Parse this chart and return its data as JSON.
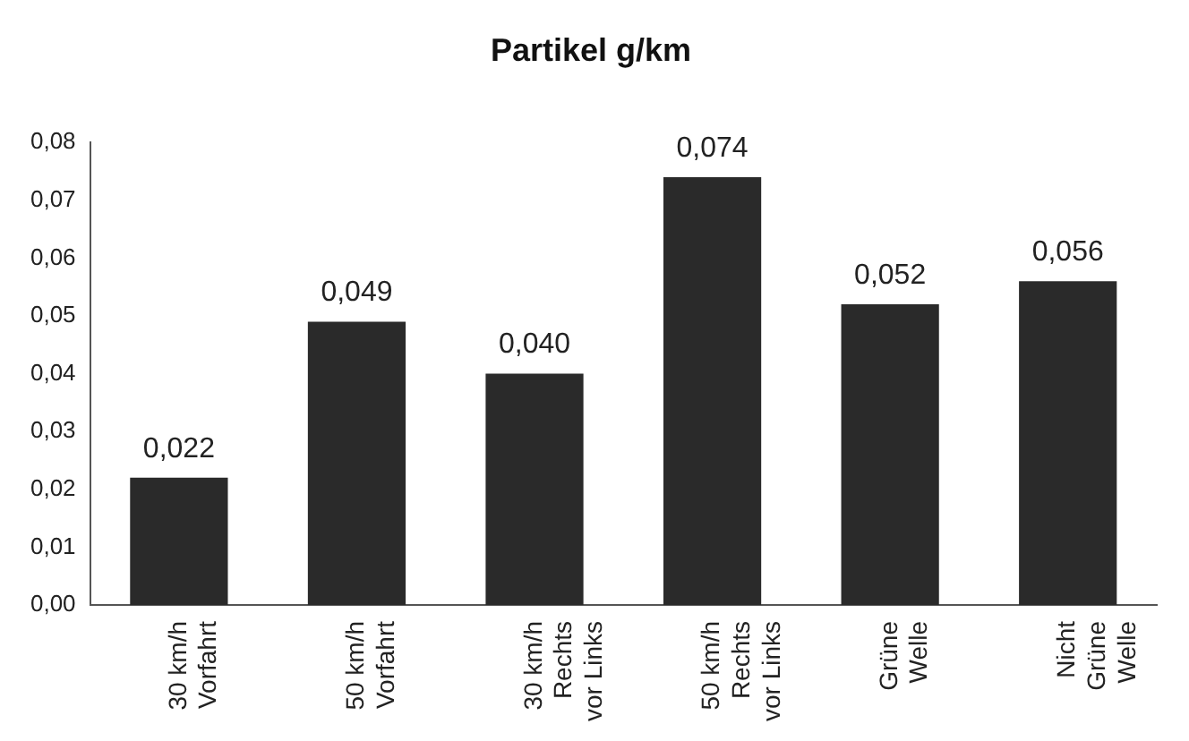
{
  "chart_data": {
    "type": "bar",
    "title": "Partikel g/km",
    "categories": [
      "30 km/h\nVorfahrt",
      "50 km/h\nVorfahrt",
      "30 km/h\nRechts\nvor Links",
      "50 km/h\nRechts\nvor Links",
      "Grüne\nWelle",
      "Nicht\nGrüne\nWelle"
    ],
    "values": [
      0.022,
      0.049,
      0.04,
      0.074,
      0.052,
      0.056
    ],
    "value_labels": [
      "0,022",
      "0,049",
      "0,040",
      "0,074",
      "0,052",
      "0,056"
    ],
    "color": "#2a2a2a",
    "ylim": [
      0,
      0.08
    ],
    "yticks": [
      {
        "value": 0,
        "label": "0,00"
      },
      {
        "value": 0.01,
        "label": "0,01"
      },
      {
        "value": 0.02,
        "label": "0,02"
      },
      {
        "value": 0.03,
        "label": "0,03"
      },
      {
        "value": 0.04,
        "label": "0,04"
      },
      {
        "value": 0.05,
        "label": "0,05"
      },
      {
        "value": 0.06,
        "label": "0,06"
      },
      {
        "value": 0.07,
        "label": "0,07"
      },
      {
        "value": 0.08,
        "label": "0,08"
      }
    ],
    "grid": false
  }
}
